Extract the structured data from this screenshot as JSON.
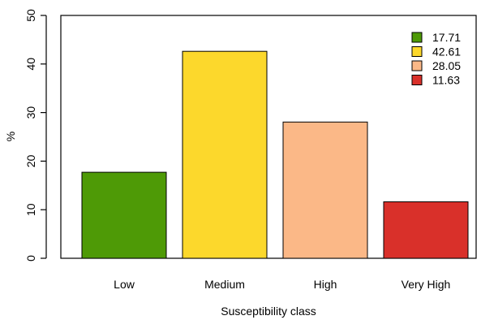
{
  "chart_data": {
    "type": "bar",
    "categories": [
      "Low",
      "Medium",
      "High",
      "Very High"
    ],
    "values": [
      17.71,
      42.61,
      28.05,
      11.63
    ],
    "colors": [
      "#4e9a06",
      "#fcd82c",
      "#fbb887",
      "#d9302a"
    ],
    "title": "",
    "xlabel": "Susceptibility class",
    "ylabel": "%",
    "ylim": [
      0,
      50
    ],
    "yticks": [
      0,
      10,
      20,
      30,
      40,
      50
    ],
    "grid": false,
    "legend": {
      "position": "top-right",
      "entries": [
        "17.71",
        "42.61",
        "28.05",
        "11.63"
      ]
    }
  }
}
